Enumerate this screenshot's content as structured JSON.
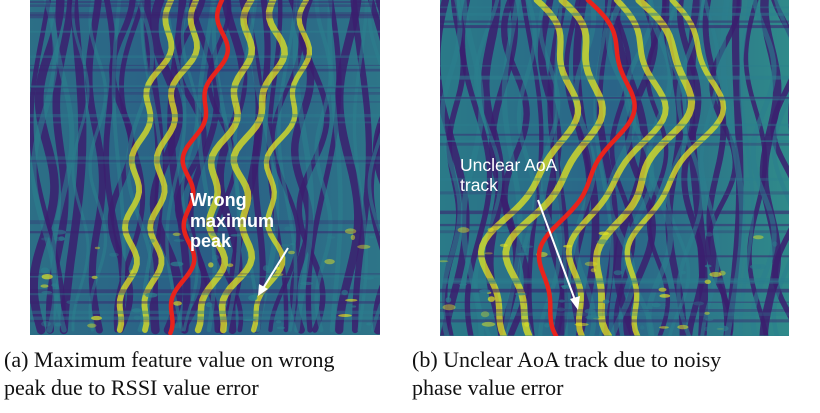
{
  "figures": [
    {
      "id": "a",
      "annotation_lines": [
        "Wrong",
        "maximum",
        "peak"
      ],
      "caption_line1": [
        "(a)",
        "Maximum",
        "feature",
        "value",
        "on",
        "wrong"
      ],
      "caption_line2": "peak due to RSSI value error"
    },
    {
      "id": "b",
      "annotation_lines": [
        "Unclear AoA",
        "track"
      ],
      "caption_line1": [
        "(b)",
        "Unclear",
        "AoA",
        "track",
        "due",
        "to",
        "noisy"
      ],
      "caption_line2": "phase value error"
    }
  ],
  "colors": {
    "background_low": "#3b1f6e",
    "mid": "#2b7f8e",
    "high": "#e6e61f",
    "track": "#e8231c"
  }
}
